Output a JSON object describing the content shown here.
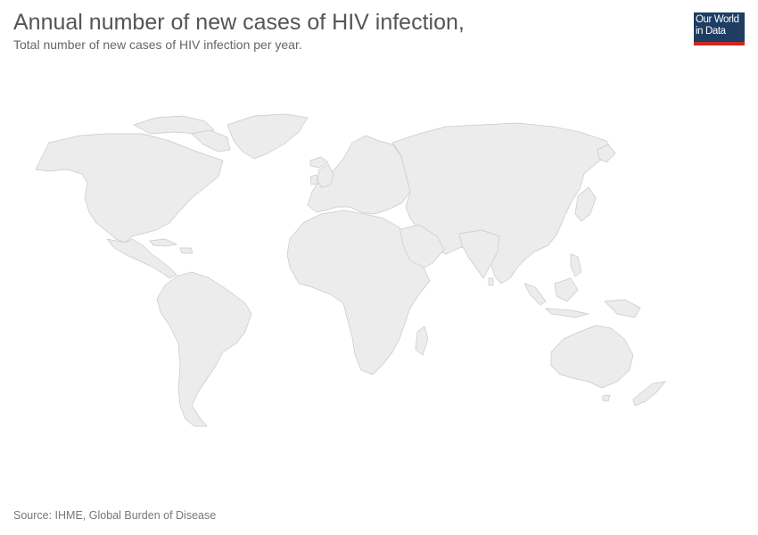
{
  "header": {
    "title": "Annual number of new cases of HIV infection,",
    "subtitle": "Total number of new cases of HIV infection per year."
  },
  "logo": {
    "line1": "Our World",
    "line2": "in Data",
    "bg_color": "#1d3d63",
    "accent_color": "#ce261e"
  },
  "map": {
    "fill_color": "#ececec",
    "border_color": "#c9c9c9"
  },
  "footer": {
    "source": "Source: IHME, Global Burden of Disease"
  }
}
